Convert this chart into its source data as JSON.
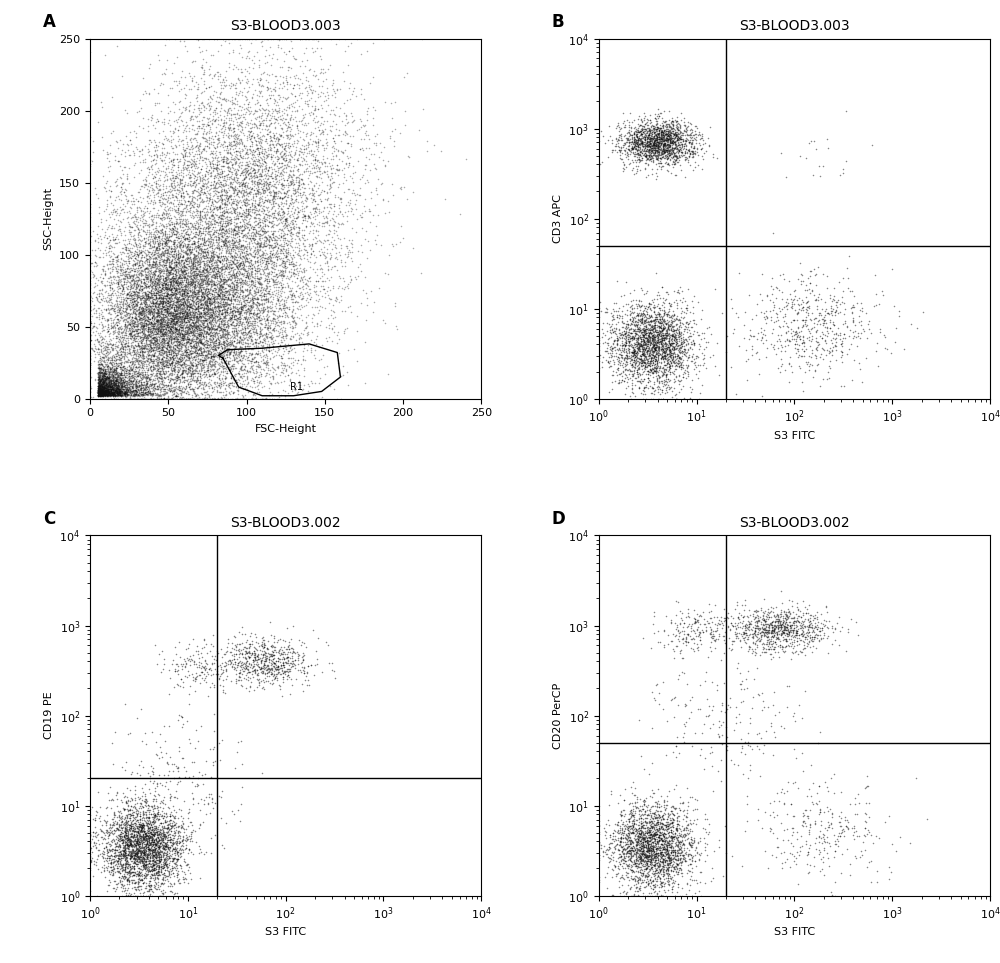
{
  "panel_A": {
    "title": "S3-BLOOD3.003",
    "xlabel": "FSC-Height",
    "ylabel": "SSC-Height",
    "xlim": [
      0,
      250
    ],
    "ylim": [
      0,
      250
    ],
    "xticks": [
      0,
      50,
      100,
      150,
      200,
      250
    ],
    "yticks": [
      0,
      50,
      100,
      150,
      200,
      250
    ],
    "label": "A",
    "gate_label": "R1",
    "seed": 42
  },
  "panel_B": {
    "title": "S3-BLOOD3.003",
    "xlabel": "S3 FITC",
    "ylabel": "CD3 APC",
    "xlim_log": [
      1,
      10000
    ],
    "ylim_log": [
      1,
      10000
    ],
    "label": "B",
    "vline": 20,
    "hline": 50,
    "seed": 43
  },
  "panel_C": {
    "title": "S3-BLOOD3.002",
    "xlabel": "S3 FITC",
    "ylabel": "CD19 PE",
    "xlim_log": [
      1,
      10000
    ],
    "ylim_log": [
      1,
      10000
    ],
    "label": "C",
    "vline": 20,
    "hline": 20,
    "seed": 44
  },
  "panel_D": {
    "title": "S3-BLOOD3.002",
    "xlabel": "S3 FITC",
    "ylabel": "CD20 PerCP",
    "xlim_log": [
      1,
      10000
    ],
    "ylim_log": [
      1,
      10000
    ],
    "label": "D",
    "vline": 20,
    "hline": 50,
    "seed": 45
  },
  "bg_color": "#ffffff",
  "dot_color": "#111111",
  "dot_size": 1.2,
  "dot_alpha": 0.6,
  "font_size_title": 10,
  "font_size_label": 12,
  "font_size_axis": 8,
  "font_size_tick": 8
}
